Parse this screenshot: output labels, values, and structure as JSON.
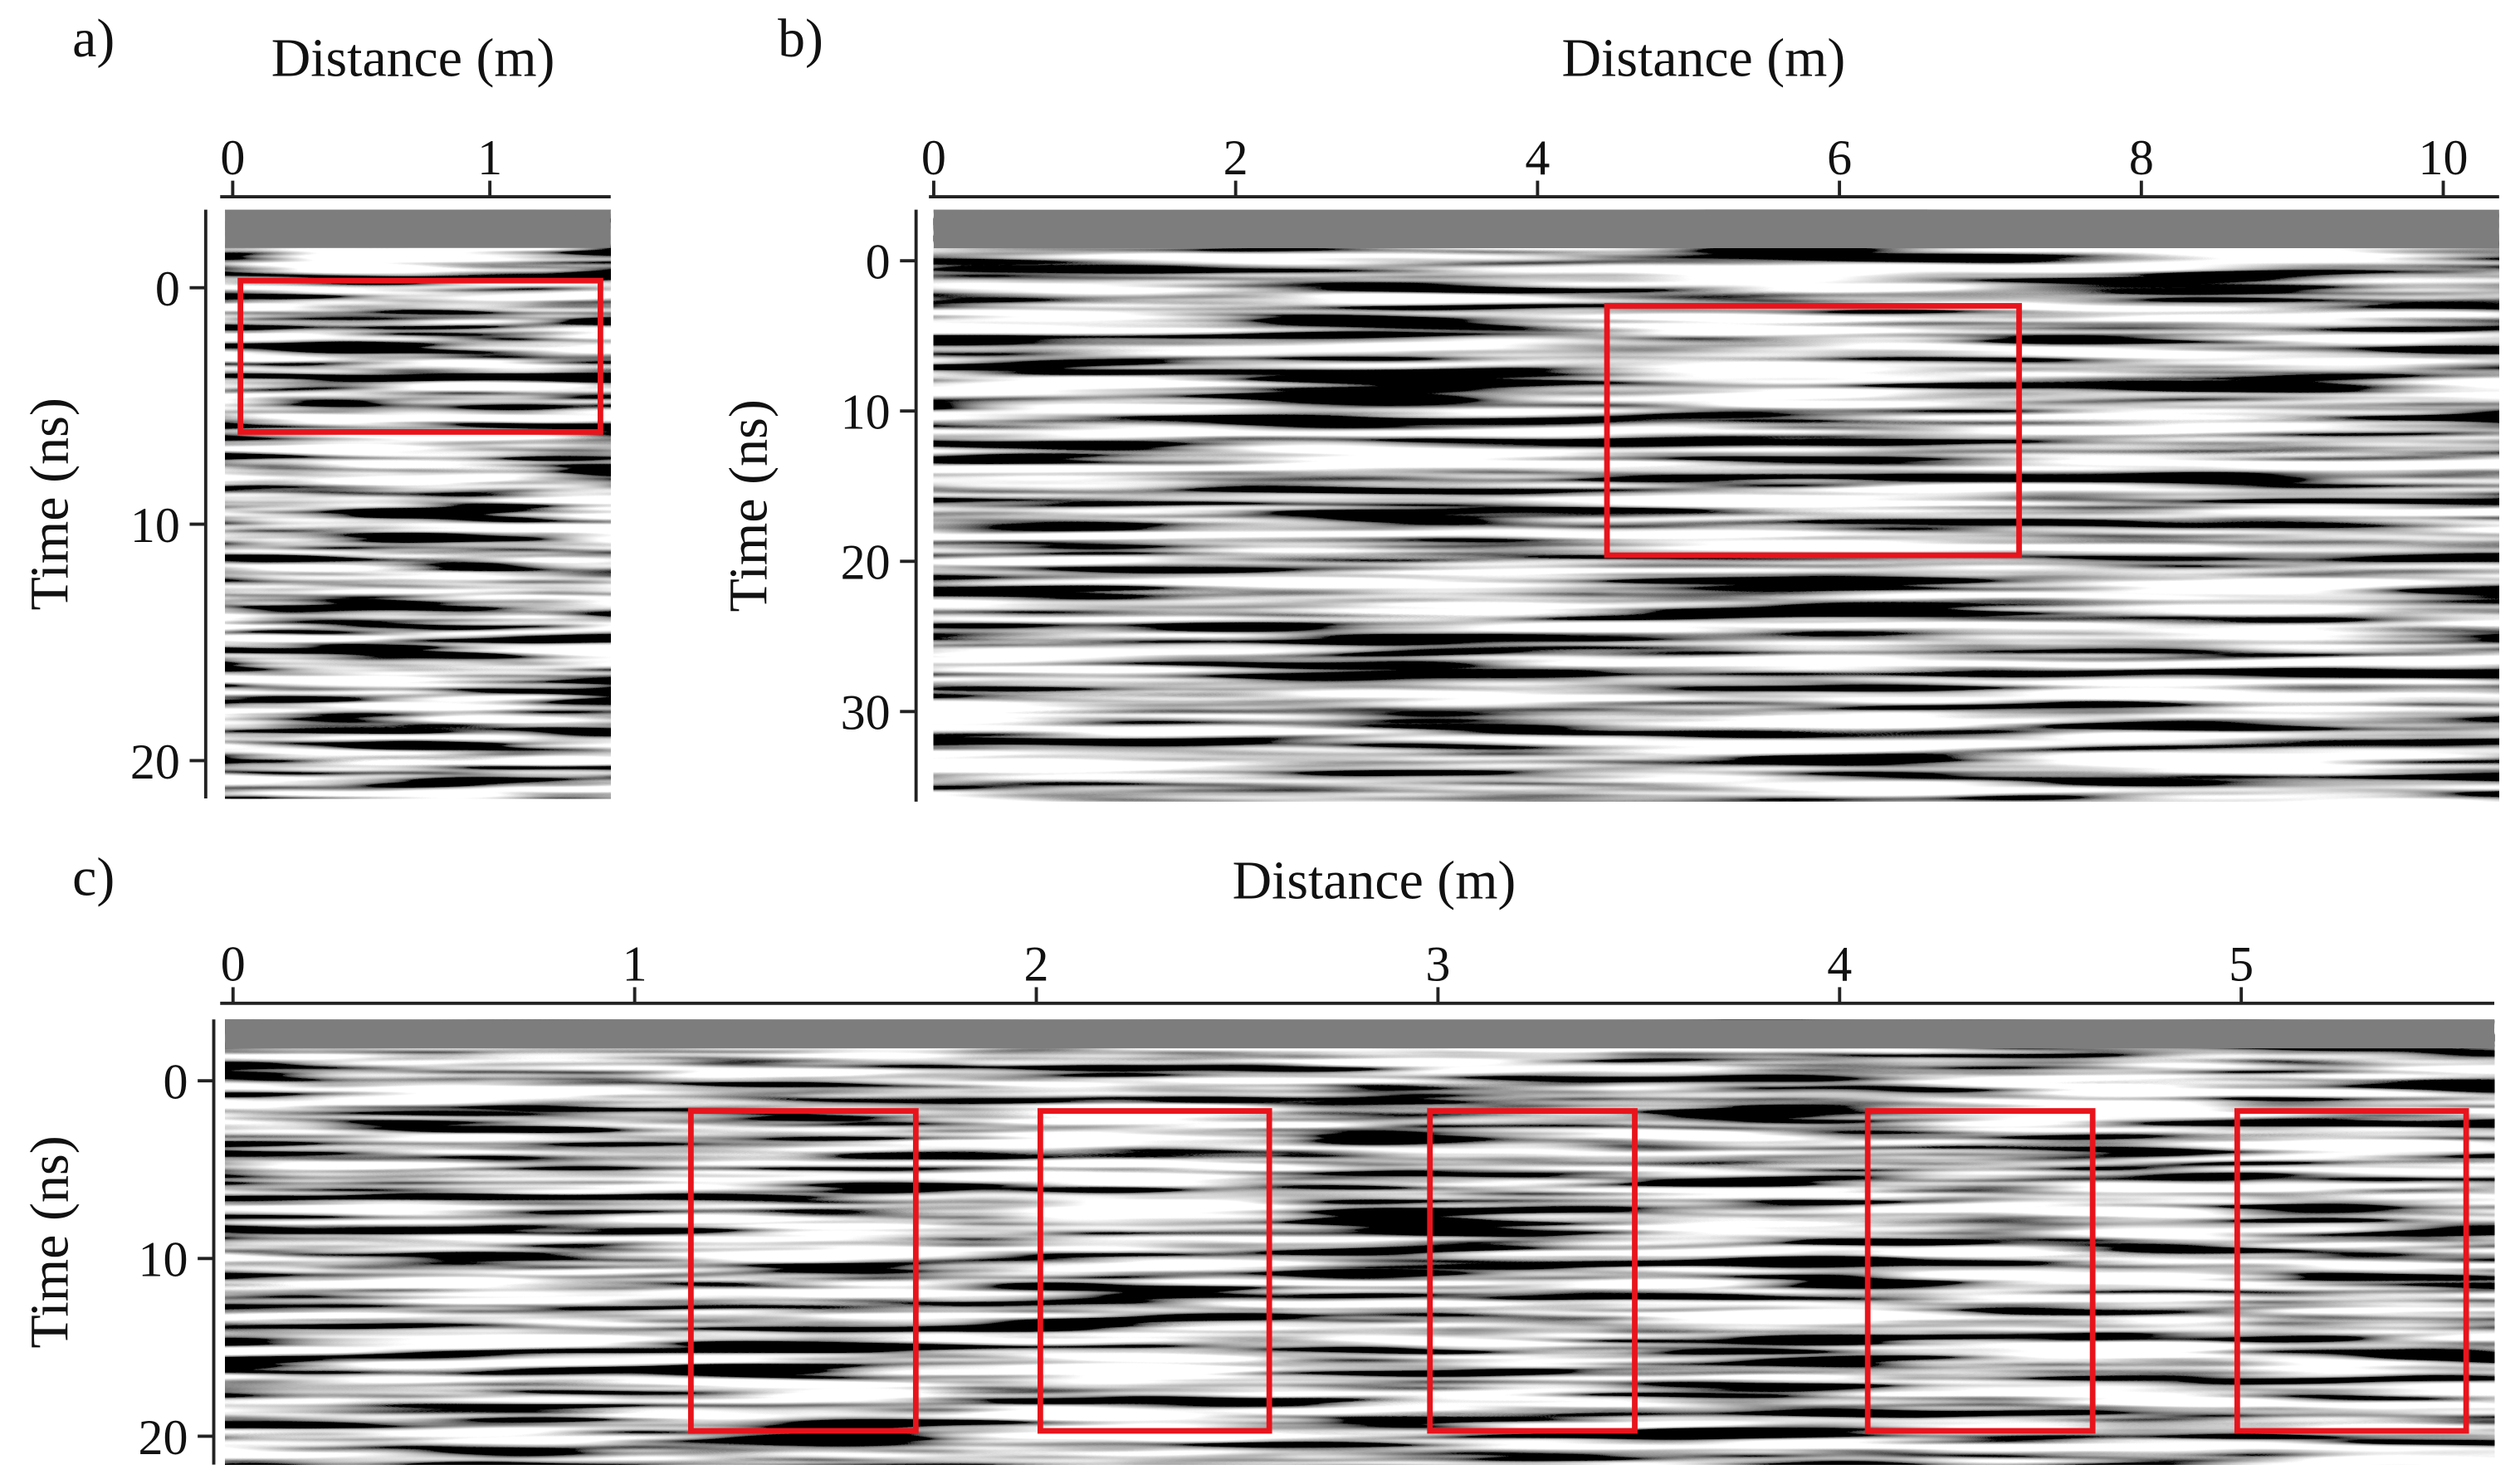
{
  "chart_data": [
    {
      "type": "radargram",
      "panel_label": "a)",
      "xlabel": "Distance (m)",
      "ylabel": "Time (ns)",
      "xlim": [
        -0.03,
        1.47
      ],
      "ylim": [
        -3.3,
        21.6
      ],
      "xticks": [
        0,
        1
      ],
      "yticks": [
        0,
        10,
        20
      ],
      "box_color": "#e8141c",
      "boxes": [
        {
          "x": [
            0.03,
            1.43
          ],
          "y": [
            -0.3,
            6.1
          ]
        }
      ]
    },
    {
      "type": "radargram",
      "panel_label": "b)",
      "xlabel": "Distance (m)",
      "ylabel": "Time (ns)",
      "xlim": [
        0,
        10.37
      ],
      "ylim": [
        -3.4,
        36
      ],
      "xticks": [
        0,
        2,
        4,
        6,
        8,
        10
      ],
      "yticks": [
        0,
        10,
        20,
        30
      ],
      "box_color": "#e8141c",
      "boxes": [
        {
          "x": [
            4.46,
            7.19
          ],
          "y": [
            3.0,
            19.6
          ]
        }
      ]
    },
    {
      "type": "radargram",
      "panel_label": "c)",
      "xlabel": "Distance (m)",
      "ylabel": "Time (ns)",
      "xlim": [
        -0.02,
        5.63
      ],
      "ylim": [
        -3.45,
        21.6
      ],
      "xticks": [
        0,
        1,
        2,
        3,
        4,
        5
      ],
      "yticks": [
        0,
        10,
        20
      ],
      "box_color": "#e8141c",
      "boxes": [
        {
          "x": [
            1.14,
            1.7
          ],
          "y": [
            1.7,
            19.7
          ]
        },
        {
          "x": [
            2.01,
            2.58
          ],
          "y": [
            1.7,
            19.7
          ]
        },
        {
          "x": [
            2.98,
            3.49
          ],
          "y": [
            1.7,
            19.7
          ]
        },
        {
          "x": [
            4.07,
            4.63
          ],
          "y": [
            1.7,
            19.7
          ]
        },
        {
          "x": [
            4.99,
            5.56
          ],
          "y": [
            1.7,
            19.7
          ]
        }
      ]
    }
  ]
}
